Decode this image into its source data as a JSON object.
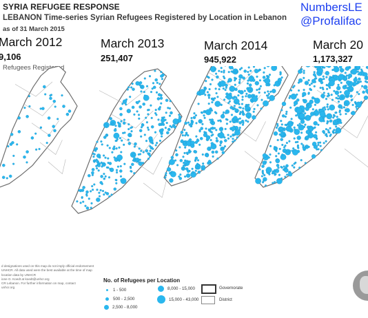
{
  "header": {
    "title": "SYRIA REFUGEE RESPONSE",
    "subtitle": "LEBANON Time-series Syrian Refugees Registered by Location in Lebanon",
    "as_of": "as of 31 March 2015"
  },
  "brand": {
    "line1": "NumbersLE",
    "line2": "@Profalifac"
  },
  "caption": "Refugees Registered",
  "panels": [
    {
      "label": "March 2012",
      "count": "9,106"
    },
    {
      "label": "March 2013",
      "count": "251,407"
    },
    {
      "label": "March 2014",
      "count": "945,922"
    },
    {
      "label": "March 20",
      "count": "1,173,327"
    }
  ],
  "legend": {
    "title": "No. of Refugees per Location",
    "classes": [
      "1 - 500",
      "500 - 2,500",
      "2,500 - 8,000",
      "8,000 - 15,000",
      "15,000 - 43,000"
    ],
    "boundaries": [
      "Governorate",
      "District"
    ]
  },
  "disclaimer": [
    "d designations used on this map do not imply official endorsement",
    "UNHCR. All data used were the best available at the time of map",
    "",
    "location data by UNHCR",
    "ione G. Koedt at koedt@unhcr.org",
    "",
    "CR Lebanon. For further information on map, contact",
    "unhcr.org"
  ],
  "colors": {
    "dot": "#2ab7ee",
    "dot_stroke": "#1a8fc4",
    "land": "#ffffff",
    "border": "#6d6d6d",
    "brand": "#1d3ff0"
  },
  "inset_map": "locator-globe"
}
